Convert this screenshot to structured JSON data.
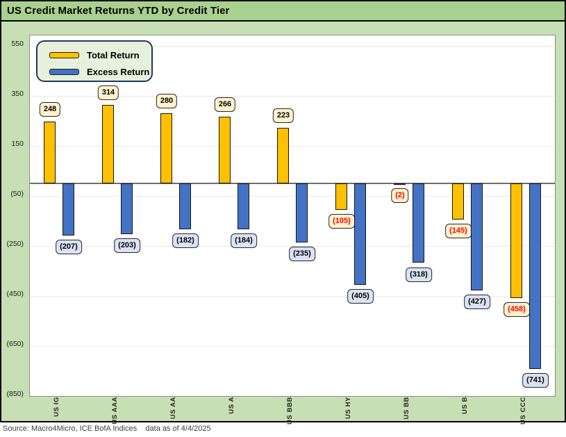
{
  "window_title": "US Credit Market Returns YTD by Credit Tier",
  "footer": {
    "source": "Source: Macro4Micro, ICE BofA Indices",
    "as_of": "data as of 4/4/2025"
  },
  "colors": {
    "title_bar_bg": "#A9D18E",
    "chart_bg": "#C6E0B4",
    "plot_bg": "#FFFFFF",
    "total_return_bar": "#FFC000",
    "excess_return_bar": "#4472C4",
    "total_label_bg": "#FFF2CC",
    "excess_label_bg": "#DAE3F3",
    "negative_total_text": "#FF0000",
    "legend_bg": "#E6F1DC",
    "legend_border": "#1F3864",
    "zero_axis": "#6E6E6E"
  },
  "chart_data": {
    "type": "bar",
    "title": "US Credit Market Returns YTD by Credit Tier",
    "categories": [
      "US IG",
      "US AAA",
      "US AA",
      "US A",
      "US BBB",
      "US HY",
      "US BB",
      "US B",
      "US CCC"
    ],
    "series": [
      {
        "name": "Total Return",
        "color": "#FFC000",
        "label_bg": "#FFF2CC",
        "values": [
          248,
          314,
          280,
          266,
          223,
          -105,
          -2,
          -145,
          -458
        ],
        "labels": [
          "248",
          "314",
          "280",
          "266",
          "223",
          "(105)",
          "(2)",
          "(145)",
          "(458)"
        ]
      },
      {
        "name": "Excess Return",
        "color": "#4472C4",
        "label_bg": "#DAE3F3",
        "values": [
          -207,
          -203,
          -182,
          -184,
          -235,
          -405,
          -318,
          -427,
          -741
        ],
        "labels": [
          "(207)",
          "(203)",
          "(182)",
          "(184)",
          "(235)",
          "(405)",
          "(318)",
          "(427)",
          "(741)"
        ]
      }
    ],
    "y_ticks": [
      {
        "value": 550,
        "label": "550"
      },
      {
        "value": 350,
        "label": "350"
      },
      {
        "value": 150,
        "label": "150"
      },
      {
        "value": -50,
        "label": "(50)"
      },
      {
        "value": -250,
        "label": "(250)"
      },
      {
        "value": -450,
        "label": "(450)"
      },
      {
        "value": -650,
        "label": "(650)"
      },
      {
        "value": -850,
        "label": "(850)"
      }
    ],
    "ylim": [
      -850,
      592
    ],
    "grid": "horizontal",
    "legend_position": "top-left",
    "negative_total_labels_red": true,
    "xlabel": "",
    "ylabel": ""
  }
}
